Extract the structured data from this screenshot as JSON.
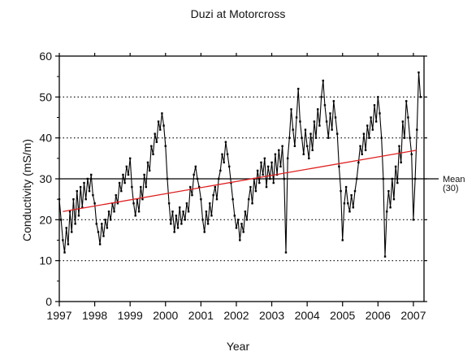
{
  "chart_data": {
    "type": "line",
    "title": "Duzi at Motorcross",
    "xlabel": "Year",
    "ylabel": "Conductivity (mS/m)",
    "xlim": [
      1997,
      2007.3
    ],
    "ylim": [
      0,
      60
    ],
    "x_ticks": [
      1997,
      1998,
      1999,
      2000,
      2001,
      2002,
      2003,
      2004,
      2005,
      2006,
      2007
    ],
    "y_ticks": [
      0,
      10,
      20,
      30,
      40,
      50,
      60
    ],
    "grid": "horizontal dotted",
    "mean": {
      "value": 30,
      "label_line1": "Mean",
      "label_line2": "(30)"
    },
    "trend": {
      "x": [
        1997.1,
        2007.1
      ],
      "y": [
        22,
        37
      ],
      "color": "#e02020"
    },
    "series": [
      {
        "color": "#000000",
        "points": [
          [
            1997.0,
            25
          ],
          [
            1997.05,
            20
          ],
          [
            1997.1,
            15
          ],
          [
            1997.15,
            12
          ],
          [
            1997.2,
            18
          ],
          [
            1997.25,
            14
          ],
          [
            1997.3,
            22
          ],
          [
            1997.35,
            17
          ],
          [
            1997.4,
            25
          ],
          [
            1997.45,
            19
          ],
          [
            1997.5,
            27
          ],
          [
            1997.55,
            21
          ],
          [
            1997.6,
            28
          ],
          [
            1997.65,
            23
          ],
          [
            1997.7,
            29
          ],
          [
            1997.75,
            25
          ],
          [
            1997.8,
            30
          ],
          [
            1997.85,
            27
          ],
          [
            1997.9,
            31
          ],
          [
            1997.95,
            26
          ],
          [
            1998.0,
            24
          ],
          [
            1998.05,
            19
          ],
          [
            1998.1,
            17
          ],
          [
            1998.15,
            14
          ],
          [
            1998.2,
            19
          ],
          [
            1998.25,
            16
          ],
          [
            1998.3,
            20
          ],
          [
            1998.35,
            18
          ],
          [
            1998.4,
            22
          ],
          [
            1998.45,
            20
          ],
          [
            1998.5,
            24
          ],
          [
            1998.55,
            22
          ],
          [
            1998.6,
            26
          ],
          [
            1998.65,
            24
          ],
          [
            1998.7,
            29
          ],
          [
            1998.75,
            27
          ],
          [
            1998.8,
            31
          ],
          [
            1998.85,
            29
          ],
          [
            1998.9,
            33
          ],
          [
            1998.95,
            31
          ],
          [
            1999.0,
            35
          ],
          [
            1999.05,
            28
          ],
          [
            1999.1,
            24
          ],
          [
            1999.15,
            21
          ],
          [
            1999.2,
            25
          ],
          [
            1999.25,
            22
          ],
          [
            1999.3,
            28
          ],
          [
            1999.35,
            25
          ],
          [
            1999.4,
            31
          ],
          [
            1999.45,
            28
          ],
          [
            1999.5,
            34
          ],
          [
            1999.55,
            32
          ],
          [
            1999.6,
            38
          ],
          [
            1999.65,
            36
          ],
          [
            1999.7,
            41
          ],
          [
            1999.75,
            39
          ],
          [
            1999.8,
            44
          ],
          [
            1999.85,
            42
          ],
          [
            1999.9,
            46
          ],
          [
            1999.95,
            43
          ],
          [
            2000.0,
            38
          ],
          [
            2000.05,
            30
          ],
          [
            2000.1,
            24
          ],
          [
            2000.15,
            19
          ],
          [
            2000.2,
            22
          ],
          [
            2000.25,
            17
          ],
          [
            2000.3,
            21
          ],
          [
            2000.35,
            18
          ],
          [
            2000.4,
            23
          ],
          [
            2000.45,
            19
          ],
          [
            2000.5,
            22
          ],
          [
            2000.55,
            20
          ],
          [
            2000.6,
            24
          ],
          [
            2000.65,
            22
          ],
          [
            2000.7,
            28
          ],
          [
            2000.75,
            26
          ],
          [
            2000.8,
            31
          ],
          [
            2000.85,
            33
          ],
          [
            2000.9,
            30
          ],
          [
            2000.95,
            28
          ],
          [
            2001.0,
            25
          ],
          [
            2001.05,
            20
          ],
          [
            2001.1,
            17
          ],
          [
            2001.15,
            22
          ],
          [
            2001.2,
            19
          ],
          [
            2001.25,
            24
          ],
          [
            2001.3,
            21
          ],
          [
            2001.35,
            26
          ],
          [
            2001.4,
            28
          ],
          [
            2001.45,
            25
          ],
          [
            2001.5,
            30
          ],
          [
            2001.55,
            32
          ],
          [
            2001.6,
            36
          ],
          [
            2001.65,
            34
          ],
          [
            2001.7,
            39
          ],
          [
            2001.75,
            36
          ],
          [
            2001.8,
            33
          ],
          [
            2001.85,
            29
          ],
          [
            2001.9,
            25
          ],
          [
            2001.95,
            21
          ],
          [
            2002.0,
            18
          ],
          [
            2002.05,
            20
          ],
          [
            2002.1,
            15
          ],
          [
            2002.15,
            19
          ],
          [
            2002.2,
            17
          ],
          [
            2002.25,
            22
          ],
          [
            2002.3,
            20
          ],
          [
            2002.35,
            25
          ],
          [
            2002.4,
            28
          ],
          [
            2002.45,
            24
          ],
          [
            2002.5,
            30
          ],
          [
            2002.55,
            27
          ],
          [
            2002.6,
            32
          ],
          [
            2002.65,
            29
          ],
          [
            2002.7,
            34
          ],
          [
            2002.75,
            31
          ],
          [
            2002.8,
            35
          ],
          [
            2002.85,
            28
          ],
          [
            2002.9,
            33
          ],
          [
            2002.95,
            30
          ],
          [
            2003.0,
            34
          ],
          [
            2003.05,
            29
          ],
          [
            2003.1,
            36
          ],
          [
            2003.15,
            31
          ],
          [
            2003.2,
            37
          ],
          [
            2003.25,
            33
          ],
          [
            2003.3,
            38
          ],
          [
            2003.35,
            30
          ],
          [
            2003.4,
            12
          ],
          [
            2003.45,
            35
          ],
          [
            2003.5,
            40
          ],
          [
            2003.55,
            47
          ],
          [
            2003.6,
            42
          ],
          [
            2003.65,
            38
          ],
          [
            2003.7,
            45
          ],
          [
            2003.75,
            52
          ],
          [
            2003.8,
            44
          ],
          [
            2003.85,
            40
          ],
          [
            2003.9,
            36
          ],
          [
            2003.95,
            42
          ],
          [
            2004.0,
            38
          ],
          [
            2004.05,
            35
          ],
          [
            2004.1,
            41
          ],
          [
            2004.15,
            37
          ],
          [
            2004.2,
            44
          ],
          [
            2004.25,
            40
          ],
          [
            2004.3,
            47
          ],
          [
            2004.35,
            43
          ],
          [
            2004.4,
            50
          ],
          [
            2004.45,
            54
          ],
          [
            2004.5,
            48
          ],
          [
            2004.55,
            44
          ],
          [
            2004.6,
            40
          ],
          [
            2004.65,
            46
          ],
          [
            2004.7,
            42
          ],
          [
            2004.75,
            49
          ],
          [
            2004.8,
            45
          ],
          [
            2004.85,
            41
          ],
          [
            2004.9,
            33
          ],
          [
            2004.95,
            27
          ],
          [
            2005.0,
            15
          ],
          [
            2005.05,
            24
          ],
          [
            2005.1,
            28
          ],
          [
            2005.15,
            24
          ],
          [
            2005.2,
            22
          ],
          [
            2005.25,
            26
          ],
          [
            2005.3,
            23
          ],
          [
            2005.35,
            27
          ],
          [
            2005.4,
            30
          ],
          [
            2005.45,
            34
          ],
          [
            2005.5,
            38
          ],
          [
            2005.55,
            36
          ],
          [
            2005.6,
            41
          ],
          [
            2005.65,
            37
          ],
          [
            2005.7,
            43
          ],
          [
            2005.75,
            40
          ],
          [
            2005.8,
            45
          ],
          [
            2005.85,
            42
          ],
          [
            2005.9,
            48
          ],
          [
            2005.95,
            44
          ],
          [
            2006.0,
            50
          ],
          [
            2006.05,
            46
          ],
          [
            2006.1,
            40
          ],
          [
            2006.15,
            30
          ],
          [
            2006.2,
            11
          ],
          [
            2006.25,
            22
          ],
          [
            2006.3,
            27
          ],
          [
            2006.35,
            23
          ],
          [
            2006.4,
            30
          ],
          [
            2006.45,
            25
          ],
          [
            2006.5,
            33
          ],
          [
            2006.55,
            29
          ],
          [
            2006.6,
            38
          ],
          [
            2006.65,
            34
          ],
          [
            2006.7,
            44
          ],
          [
            2006.75,
            40
          ],
          [
            2006.8,
            49
          ],
          [
            2006.85,
            45
          ],
          [
            2006.9,
            40
          ],
          [
            2006.95,
            36
          ],
          [
            2007.0,
            20
          ],
          [
            2007.05,
            30
          ],
          [
            2007.1,
            42
          ],
          [
            2007.15,
            56
          ],
          [
            2007.2,
            50
          ]
        ]
      }
    ]
  }
}
